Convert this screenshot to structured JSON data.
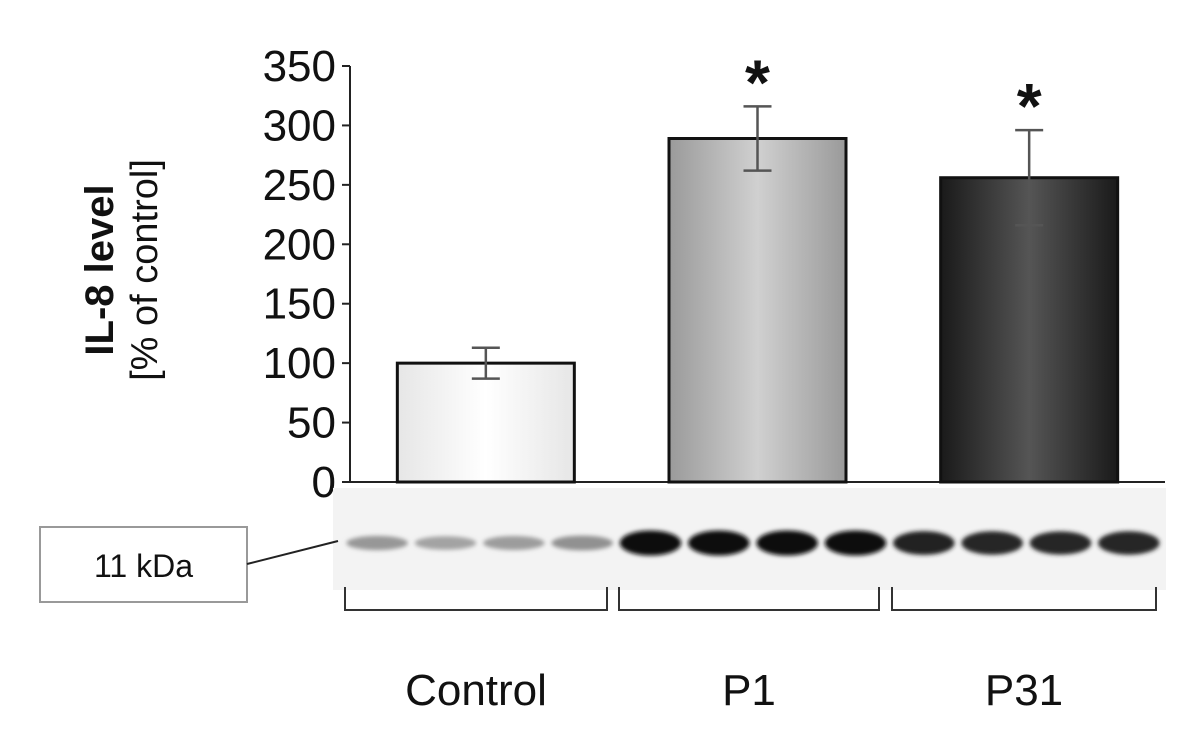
{
  "chart_data": {
    "type": "bar",
    "categories": [
      "Control",
      "P1",
      "P31"
    ],
    "values": [
      100,
      289,
      256
    ],
    "errors": [
      13,
      27,
      40
    ],
    "significance": [
      "",
      "*",
      "*"
    ],
    "ylabel_bold": "IL-8 level",
    "ylabel_unit": "[% of control]",
    "xlabel": "",
    "ylim": [
      0,
      350
    ],
    "yticks": [
      0,
      50,
      100,
      150,
      200,
      250,
      300,
      350
    ],
    "grid": false,
    "bar_colors": [
      "#f2f2f2",
      "#b3b3b3",
      "#2e2e2e"
    ],
    "blot": {
      "label": "11 kDa",
      "lanes_per_group": 4,
      "band_intensity": [
        [
          0.35,
          0.3,
          0.33,
          0.38
        ],
        [
          0.95,
          0.95,
          0.95,
          0.95
        ],
        [
          0.88,
          0.86,
          0.85,
          0.86
        ]
      ]
    }
  }
}
